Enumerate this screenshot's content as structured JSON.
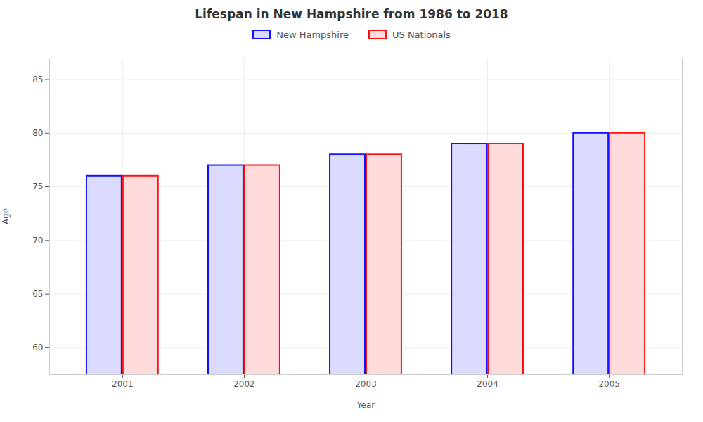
{
  "chart_data": {
    "type": "bar",
    "title": "Lifespan in New Hampshire from 1986 to 2018",
    "xlabel": "Year",
    "ylabel": "Age",
    "categories": [
      "2001",
      "2002",
      "2003",
      "2004",
      "2005"
    ],
    "series": [
      {
        "name": "New Hampshire",
        "color": "#1111ff",
        "values": [
          76,
          77,
          78,
          79,
          80
        ]
      },
      {
        "name": "US Nationals",
        "color": "#ff1111",
        "values": [
          76,
          77,
          78,
          79,
          80
        ]
      }
    ],
    "ylim": [
      57.5,
      87
    ],
    "yticks": [
      60,
      65,
      70,
      75,
      80,
      85
    ],
    "grid": true,
    "legend": "top"
  }
}
